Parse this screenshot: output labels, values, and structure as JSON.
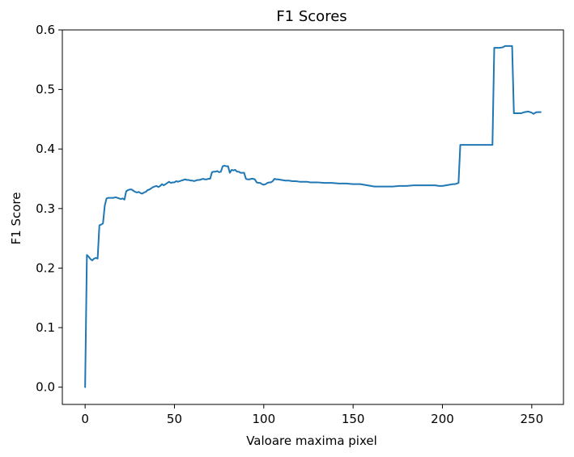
{
  "chart_data": {
    "type": "line",
    "title": "F1 Scores",
    "xlabel": "Valoare maxima pixel",
    "ylabel": "F1 Score",
    "xlim": [
      -12.75,
      267.75
    ],
    "ylim": [
      -0.029,
      0.6
    ],
    "xticks": [
      0,
      50,
      100,
      150,
      200,
      250
    ],
    "xtick_labels": [
      "0",
      "50",
      "100",
      "150",
      "200",
      "250"
    ],
    "yticks": [
      0.0,
      0.1,
      0.2,
      0.3,
      0.4,
      0.5,
      0.6
    ],
    "ytick_labels": [
      "0.0",
      "0.1",
      "0.2",
      "0.3",
      "0.4",
      "0.5",
      "0.6"
    ],
    "grid": false,
    "series": [
      {
        "color": "#1f77b4",
        "points": [
          [
            0,
            0.0
          ],
          [
            1,
            0.222
          ],
          [
            2,
            0.219
          ],
          [
            3,
            0.215
          ],
          [
            4,
            0.213
          ],
          [
            5,
            0.216
          ],
          [
            6,
            0.217
          ],
          [
            7,
            0.216
          ],
          [
            8,
            0.272
          ],
          [
            9,
            0.273
          ],
          [
            10,
            0.275
          ],
          [
            11,
            0.305
          ],
          [
            12,
            0.317
          ],
          [
            13,
            0.318
          ],
          [
            14,
            0.318
          ],
          [
            15,
            0.318
          ],
          [
            16,
            0.318
          ],
          [
            17,
            0.319
          ],
          [
            18,
            0.318
          ],
          [
            19,
            0.317
          ],
          [
            20,
            0.316
          ],
          [
            21,
            0.317
          ],
          [
            22,
            0.315
          ],
          [
            23,
            0.329
          ],
          [
            24,
            0.331
          ],
          [
            25,
            0.332
          ],
          [
            26,
            0.332
          ],
          [
            27,
            0.33
          ],
          [
            28,
            0.328
          ],
          [
            29,
            0.327
          ],
          [
            30,
            0.328
          ],
          [
            31,
            0.326
          ],
          [
            32,
            0.325
          ],
          [
            33,
            0.327
          ],
          [
            34,
            0.328
          ],
          [
            35,
            0.331
          ],
          [
            36,
            0.332
          ],
          [
            37,
            0.334
          ],
          [
            38,
            0.336
          ],
          [
            39,
            0.337
          ],
          [
            40,
            0.338
          ],
          [
            41,
            0.336
          ],
          [
            42,
            0.338
          ],
          [
            43,
            0.341
          ],
          [
            44,
            0.339
          ],
          [
            45,
            0.341
          ],
          [
            46,
            0.343
          ],
          [
            47,
            0.345
          ],
          [
            48,
            0.343
          ],
          [
            49,
            0.344
          ],
          [
            50,
            0.344
          ],
          [
            51,
            0.346
          ],
          [
            52,
            0.345
          ],
          [
            53,
            0.346
          ],
          [
            54,
            0.347
          ],
          [
            55,
            0.348
          ],
          [
            56,
            0.349
          ],
          [
            57,
            0.348
          ],
          [
            58,
            0.348
          ],
          [
            59,
            0.347
          ],
          [
            60,
            0.347
          ],
          [
            61,
            0.346
          ],
          [
            62,
            0.347
          ],
          [
            63,
            0.348
          ],
          [
            64,
            0.348
          ],
          [
            65,
            0.349
          ],
          [
            66,
            0.35
          ],
          [
            67,
            0.349
          ],
          [
            68,
            0.349
          ],
          [
            69,
            0.35
          ],
          [
            70,
            0.35
          ],
          [
            71,
            0.361
          ],
          [
            72,
            0.362
          ],
          [
            73,
            0.362
          ],
          [
            74,
            0.363
          ],
          [
            75,
            0.361
          ],
          [
            76,
            0.362
          ],
          [
            77,
            0.371
          ],
          [
            78,
            0.372
          ],
          [
            79,
            0.371
          ],
          [
            80,
            0.371
          ],
          [
            81,
            0.36
          ],
          [
            82,
            0.365
          ],
          [
            83,
            0.364
          ],
          [
            84,
            0.365
          ],
          [
            85,
            0.362
          ],
          [
            86,
            0.362
          ],
          [
            87,
            0.36
          ],
          [
            88,
            0.36
          ],
          [
            89,
            0.36
          ],
          [
            90,
            0.35
          ],
          [
            91,
            0.349
          ],
          [
            92,
            0.349
          ],
          [
            93,
            0.35
          ],
          [
            94,
            0.35
          ],
          [
            95,
            0.349
          ],
          [
            96,
            0.344
          ],
          [
            97,
            0.343
          ],
          [
            98,
            0.343
          ],
          [
            99,
            0.341
          ],
          [
            100,
            0.34
          ],
          [
            101,
            0.341
          ],
          [
            102,
            0.343
          ],
          [
            103,
            0.344
          ],
          [
            104,
            0.344
          ],
          [
            105,
            0.346
          ],
          [
            106,
            0.35
          ],
          [
            107,
            0.349
          ],
          [
            108,
            0.349
          ],
          [
            110,
            0.348
          ],
          [
            112,
            0.347
          ],
          [
            114,
            0.347
          ],
          [
            116,
            0.346
          ],
          [
            118,
            0.346
          ],
          [
            120,
            0.345
          ],
          [
            122,
            0.345
          ],
          [
            124,
            0.345
          ],
          [
            126,
            0.344
          ],
          [
            128,
            0.344
          ],
          [
            130,
            0.344
          ],
          [
            134,
            0.343
          ],
          [
            138,
            0.343
          ],
          [
            142,
            0.342
          ],
          [
            146,
            0.342
          ],
          [
            150,
            0.341
          ],
          [
            154,
            0.341
          ],
          [
            156,
            0.34
          ],
          [
            158,
            0.339
          ],
          [
            160,
            0.338
          ],
          [
            162,
            0.337
          ],
          [
            164,
            0.337
          ],
          [
            168,
            0.337
          ],
          [
            172,
            0.337
          ],
          [
            176,
            0.338
          ],
          [
            180,
            0.338
          ],
          [
            184,
            0.339
          ],
          [
            188,
            0.339
          ],
          [
            192,
            0.339
          ],
          [
            196,
            0.339
          ],
          [
            198,
            0.338
          ],
          [
            200,
            0.338
          ],
          [
            202,
            0.339
          ],
          [
            204,
            0.34
          ],
          [
            206,
            0.341
          ],
          [
            207,
            0.341
          ],
          [
            208,
            0.342
          ],
          [
            209,
            0.343
          ],
          [
            210,
            0.407
          ],
          [
            212,
            0.407
          ],
          [
            216,
            0.407
          ],
          [
            220,
            0.407
          ],
          [
            224,
            0.407
          ],
          [
            228,
            0.407
          ],
          [
            229,
            0.57
          ],
          [
            232,
            0.57
          ],
          [
            234,
            0.571
          ],
          [
            235,
            0.573
          ],
          [
            238,
            0.573
          ],
          [
            239,
            0.573
          ],
          [
            240,
            0.46
          ],
          [
            244,
            0.46
          ],
          [
            246,
            0.462
          ],
          [
            248,
            0.463
          ],
          [
            250,
            0.461
          ],
          [
            251,
            0.459
          ],
          [
            252,
            0.461
          ],
          [
            253,
            0.462
          ],
          [
            255,
            0.462
          ]
        ]
      }
    ]
  }
}
